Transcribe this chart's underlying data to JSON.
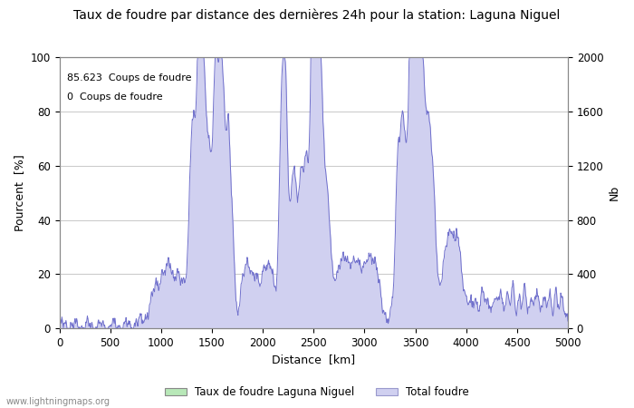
{
  "title": "Taux de foudre par distance des dernières 24h pour la station: Laguna Niguel",
  "xlabel": "Distance  [km]",
  "ylabel_left": "Pourcent  [%]",
  "ylabel_right": "Nb",
  "annotation_line1": "85.623  Coups de foudre",
  "annotation_line2": "0  Coups de foudre",
  "legend_label1": "Taux de foudre Laguna Niguel",
  "legend_label2": "Total foudre",
  "watermark": "www.lightningmaps.org",
  "xlim": [
    0,
    5000
  ],
  "ylim_left": [
    0,
    100
  ],
  "ylim_right": [
    0,
    2000
  ],
  "xticks": [
    0,
    500,
    1000,
    1500,
    2000,
    2500,
    3000,
    3500,
    4000,
    4500,
    5000
  ],
  "yticks_left": [
    0,
    20,
    40,
    60,
    80,
    100
  ],
  "yticks_right": [
    0,
    400,
    800,
    1200,
    1600,
    2000
  ],
  "fill_color_green": "#b8e8b8",
  "fill_color_blue": "#d0d0f0",
  "line_color": "#7070cc",
  "background_color": "#ffffff",
  "grid_color": "#cccccc",
  "title_fontsize": 10,
  "label_fontsize": 9,
  "tick_fontsize": 8.5
}
